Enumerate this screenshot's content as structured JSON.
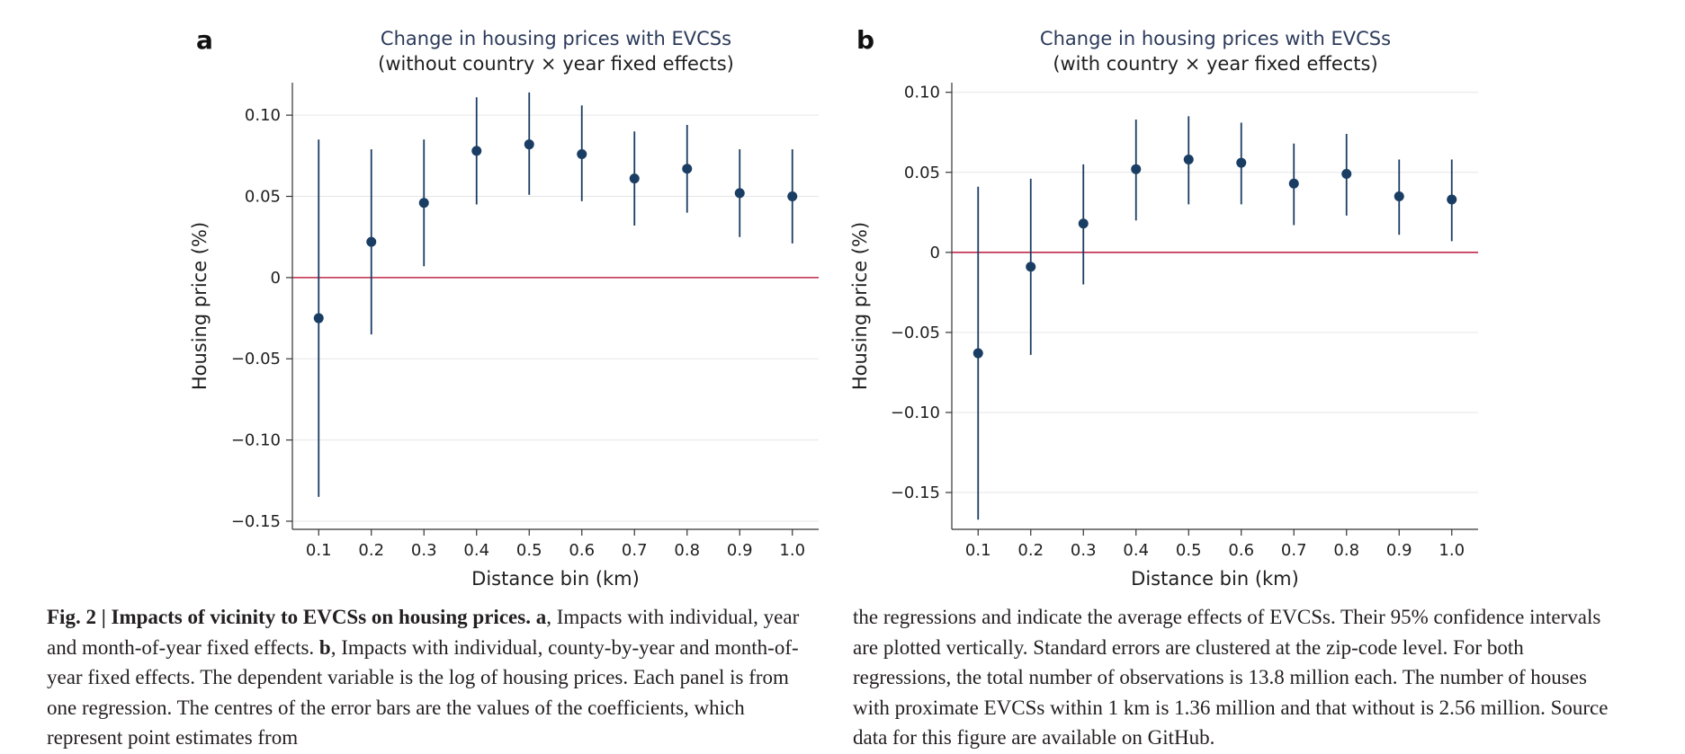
{
  "figure": {
    "colors": {
      "series": "#1a3d63",
      "zero_line": "#c0294a",
      "grid": "#e6e6e6",
      "axis": "#333333",
      "text": "#1f1f1f",
      "title": "#2b3a5a"
    }
  },
  "chart_data": [
    {
      "type": "scatter",
      "panel_label": "a",
      "title": "Change in housing prices with EVCSs",
      "subtitle": "(without country × year fixed effects)",
      "xlabel": "Distance bin (km)",
      "ylabel": "Housing price (%)",
      "x": [
        0.1,
        0.2,
        0.3,
        0.4,
        0.5,
        0.6,
        0.7,
        0.8,
        0.9,
        1.0
      ],
      "x_tick_labels": [
        "0.1",
        "0.2",
        "0.3",
        "0.4",
        "0.5",
        "0.6",
        "0.7",
        "0.8",
        "0.9",
        "1.0"
      ],
      "y": [
        -0.025,
        0.022,
        0.046,
        0.078,
        0.082,
        0.076,
        0.061,
        0.067,
        0.052,
        0.05
      ],
      "ci_lower": [
        -0.135,
        -0.035,
        0.007,
        0.045,
        0.051,
        0.047,
        0.032,
        0.04,
        0.025,
        0.021
      ],
      "ci_upper": [
        0.085,
        0.079,
        0.085,
        0.111,
        0.114,
        0.106,
        0.09,
        0.094,
        0.079,
        0.079
      ],
      "y_ticks": [
        0.1,
        0.05,
        0,
        -0.05,
        -0.1,
        -0.15
      ],
      "y_tick_labels": [
        "0.10",
        "0.05",
        "0",
        "−0.05",
        "−0.10",
        "−0.15"
      ],
      "ylim": [
        -0.155,
        0.12
      ],
      "xlim": [
        0.05,
        1.05
      ],
      "reference_line": 0,
      "grid": true
    },
    {
      "type": "scatter",
      "panel_label": "b",
      "title": "Change in housing prices with EVCSs",
      "subtitle": "(with country × year fixed effects)",
      "xlabel": "Distance bin (km)",
      "ylabel": "Housing price (%)",
      "x": [
        0.1,
        0.2,
        0.3,
        0.4,
        0.5,
        0.6,
        0.7,
        0.8,
        0.9,
        1.0
      ],
      "x_tick_labels": [
        "0.1",
        "0.2",
        "0.3",
        "0.4",
        "0.5",
        "0.6",
        "0.7",
        "0.8",
        "0.9",
        "1.0"
      ],
      "y": [
        -0.063,
        -0.009,
        0.018,
        0.052,
        0.058,
        0.056,
        0.043,
        0.049,
        0.035,
        0.033
      ],
      "ci_lower": [
        -0.167,
        -0.064,
        -0.02,
        0.02,
        0.03,
        0.03,
        0.017,
        0.023,
        0.011,
        0.007
      ],
      "ci_upper": [
        0.041,
        0.046,
        0.055,
        0.083,
        0.085,
        0.081,
        0.068,
        0.074,
        0.058,
        0.058
      ],
      "y_ticks": [
        0.1,
        0.05,
        0,
        -0.05,
        -0.1,
        -0.15
      ],
      "y_tick_labels": [
        "0.10",
        "0.05",
        "0",
        "−0.05",
        "−0.10",
        "−0.15"
      ],
      "ylim": [
        -0.173,
        0.106
      ],
      "xlim": [
        0.05,
        1.05
      ],
      "reference_line": 0,
      "grid": true
    }
  ],
  "caption": {
    "fig_label": "Fig. 2 | Impacts of vicinity to EVCSs on housing prices.",
    "panel_a_label": "a",
    "panel_a_text": ", Impacts with individual, year and month-of-year fixed effects.",
    "panel_b_label": "b",
    "panel_b_text": ", Impacts with individual, county-by-year and month-of-year fixed effects. The dependent variable is the log of housing prices. Each panel is from one regression. The centres of the error bars are the values of the coefficients, which represent point estimates from",
    "right_text": "the regressions and indicate the average effects of EVCSs. Their 95% confidence intervals are plotted vertically. Standard errors are clustered at the zip-code level. For both regressions, the total number of observations is 13.8 million each. The number of houses with proximate EVCSs within 1 km is 1.36 million and that without is 2.56 million. Source data for this figure are available on GitHub."
  }
}
